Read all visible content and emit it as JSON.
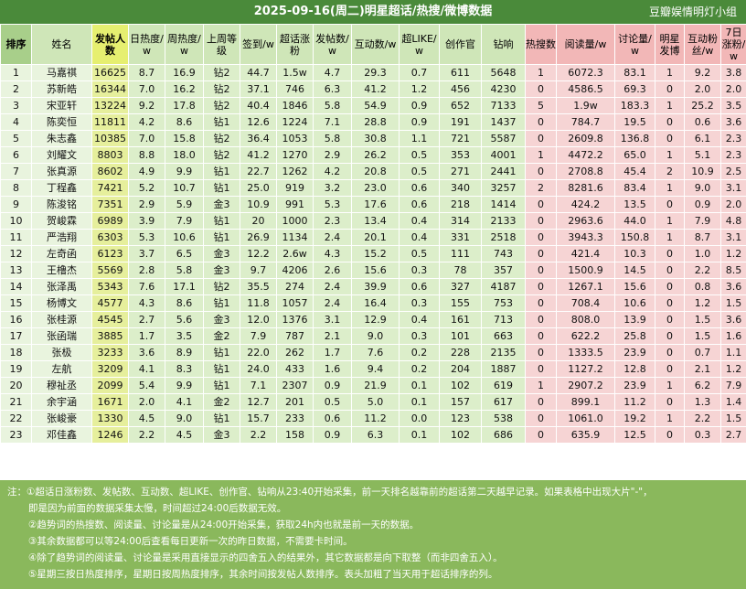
{
  "title": "2025-09-16(周二)明星超话/热搜/微博数据",
  "org": "豆瓣娱情明灯小组",
  "headers": [
    "排序",
    "姓名",
    "发帖人数",
    "日热度/w",
    "周热度/w",
    "上周等级",
    "签到/w",
    "超话涨粉",
    "发帖数/w",
    "互动数/w",
    "超LIKE/w",
    "创作官",
    "钻响",
    "热搜数",
    "阅读量/w",
    "讨论量/w",
    "明星发博",
    "互动粉丝/w",
    "7日涨粉/w"
  ],
  "rows": [
    [
      "1",
      "马嘉祺",
      "16625",
      "8.7",
      "16.9",
      "钻2",
      "44.7",
      "1.5w",
      "4.7",
      "29.3",
      "0.7",
      "611",
      "5648",
      "1",
      "6072.3",
      "83.1",
      "1",
      "9.2",
      "3.8"
    ],
    [
      "2",
      "苏新皓",
      "16344",
      "7.0",
      "16.2",
      "钻2",
      "37.1",
      "746",
      "6.3",
      "41.2",
      "1.2",
      "456",
      "4230",
      "0",
      "4586.5",
      "69.3",
      "0",
      "2.0",
      "2.0"
    ],
    [
      "3",
      "宋亚轩",
      "13224",
      "9.2",
      "17.8",
      "钻2",
      "40.4",
      "1846",
      "5.8",
      "54.9",
      "0.9",
      "652",
      "7133",
      "5",
      "1.9w",
      "183.3",
      "1",
      "25.2",
      "3.5"
    ],
    [
      "4",
      "陈奕恒",
      "11811",
      "4.2",
      "8.6",
      "钻1",
      "12.6",
      "1224",
      "7.1",
      "28.8",
      "0.9",
      "191",
      "1437",
      "0",
      "784.7",
      "19.5",
      "0",
      "0.6",
      "3.6"
    ],
    [
      "5",
      "朱志鑫",
      "10385",
      "7.0",
      "15.8",
      "钻2",
      "36.4",
      "1053",
      "5.8",
      "30.8",
      "1.1",
      "721",
      "5587",
      "0",
      "2609.8",
      "136.8",
      "0",
      "6.1",
      "2.3"
    ],
    [
      "6",
      "刘耀文",
      "8803",
      "8.8",
      "18.0",
      "钻2",
      "41.2",
      "1270",
      "2.9",
      "26.2",
      "0.5",
      "353",
      "4001",
      "1",
      "4472.2",
      "65.0",
      "1",
      "5.1",
      "2.3"
    ],
    [
      "7",
      "张真源",
      "8602",
      "4.9",
      "9.9",
      "钻1",
      "22.7",
      "1262",
      "4.2",
      "20.8",
      "0.5",
      "271",
      "2441",
      "0",
      "2708.8",
      "45.4",
      "2",
      "10.9",
      "2.5"
    ],
    [
      "8",
      "丁程鑫",
      "7421",
      "5.2",
      "10.7",
      "钻1",
      "25.0",
      "919",
      "3.2",
      "23.0",
      "0.6",
      "340",
      "3257",
      "2",
      "8281.6",
      "83.4",
      "1",
      "9.0",
      "3.1"
    ],
    [
      "9",
      "陈浚铭",
      "7351",
      "2.9",
      "5.9",
      "金3",
      "10.9",
      "991",
      "5.3",
      "17.6",
      "0.6",
      "218",
      "1414",
      "0",
      "424.2",
      "13.5",
      "0",
      "0.9",
      "2.0"
    ],
    [
      "10",
      "贺峻霖",
      "6989",
      "3.9",
      "7.9",
      "钻1",
      "20",
      "1000",
      "2.3",
      "13.4",
      "0.4",
      "314",
      "2133",
      "0",
      "2963.6",
      "44.0",
      "1",
      "7.9",
      "4.8"
    ],
    [
      "11",
      "严浩翔",
      "6303",
      "5.3",
      "10.6",
      "钻1",
      "26.9",
      "1134",
      "2.4",
      "20.1",
      "0.4",
      "331",
      "2518",
      "0",
      "3943.3",
      "150.8",
      "1",
      "8.7",
      "3.1"
    ],
    [
      "12",
      "左奇函",
      "6123",
      "3.7",
      "6.5",
      "金3",
      "12.2",
      "2.6w",
      "4.3",
      "15.2",
      "0.5",
      "111",
      "743",
      "0",
      "421.4",
      "10.3",
      "0",
      "1.0",
      "1.2"
    ],
    [
      "13",
      "王橹杰",
      "5569",
      "2.8",
      "5.8",
      "金3",
      "9.7",
      "4206",
      "2.6",
      "15.6",
      "0.3",
      "78",
      "357",
      "0",
      "1500.9",
      "14.5",
      "0",
      "2.2",
      "8.5"
    ],
    [
      "14",
      "张泽禹",
      "5343",
      "7.6",
      "17.1",
      "钻2",
      "35.5",
      "274",
      "2.4",
      "39.9",
      "0.6",
      "327",
      "4187",
      "0",
      "1267.1",
      "15.6",
      "0",
      "0.8",
      "3.6"
    ],
    [
      "15",
      "杨博文",
      "4577",
      "4.3",
      "8.6",
      "钻1",
      "11.8",
      "1057",
      "2.4",
      "16.4",
      "0.3",
      "155",
      "753",
      "0",
      "708.4",
      "10.6",
      "0",
      "1.2",
      "1.5"
    ],
    [
      "16",
      "张桂源",
      "4545",
      "2.7",
      "5.6",
      "金3",
      "12.0",
      "1376",
      "3.1",
      "12.9",
      "0.4",
      "161",
      "713",
      "0",
      "808.0",
      "13.9",
      "0",
      "1.5",
      "3.6"
    ],
    [
      "17",
      "张函瑞",
      "3885",
      "1.7",
      "3.5",
      "金2",
      "7.9",
      "787",
      "2.1",
      "9.0",
      "0.3",
      "101",
      "663",
      "0",
      "622.2",
      "25.8",
      "0",
      "1.5",
      "1.6"
    ],
    [
      "18",
      "张极",
      "3233",
      "3.6",
      "8.9",
      "钻1",
      "22.0",
      "262",
      "1.7",
      "7.6",
      "0.2",
      "228",
      "2135",
      "0",
      "1333.5",
      "23.9",
      "0",
      "0.7",
      "1.1"
    ],
    [
      "19",
      "左航",
      "3209",
      "4.1",
      "8.3",
      "钻1",
      "24.0",
      "433",
      "1.6",
      "9.4",
      "0.2",
      "204",
      "1887",
      "0",
      "1127.2",
      "12.8",
      "0",
      "2.1",
      "1.2"
    ],
    [
      "20",
      "穆祉丞",
      "2099",
      "5.4",
      "9.9",
      "钻1",
      "7.1",
      "2307",
      "0.9",
      "21.9",
      "0.1",
      "102",
      "619",
      "1",
      "2907.2",
      "23.9",
      "1",
      "6.2",
      "7.9"
    ],
    [
      "21",
      "余宇涵",
      "1671",
      "2.0",
      "4.1",
      "金2",
      "12.7",
      "201",
      "0.5",
      "5.0",
      "0.1",
      "157",
      "617",
      "0",
      "899.1",
      "11.2",
      "0",
      "1.3",
      "1.4"
    ],
    [
      "22",
      "张峻豪",
      "1330",
      "4.5",
      "9.0",
      "钻1",
      "15.7",
      "233",
      "0.6",
      "11.2",
      "0.0",
      "123",
      "538",
      "0",
      "1061.0",
      "19.2",
      "1",
      "2.2",
      "1.5"
    ],
    [
      "23",
      "邓佳鑫",
      "1246",
      "2.2",
      "4.5",
      "金3",
      "2.2",
      "158",
      "0.9",
      "6.3",
      "0.1",
      "102",
      "686",
      "0",
      "635.9",
      "12.5",
      "0",
      "0.3",
      "2.7"
    ]
  ],
  "highlights": {
    "red": [
      [
        0,
        6
      ],
      [
        0,
        7
      ],
      [
        1,
        14
      ],
      [
        2,
        14
      ],
      [
        5,
        2
      ],
      [
        11,
        3
      ],
      [
        11,
        6
      ],
      [
        11,
        7
      ],
      [
        12,
        7
      ],
      [
        19,
        18
      ],
      [
        20,
        2
      ],
      [
        10,
        15
      ]
    ],
    "blue": [
      [
        1,
        3
      ],
      [
        2,
        6
      ],
      [
        7,
        6
      ],
      [
        12,
        14
      ],
      [
        13,
        15
      ],
      [
        17,
        3
      ],
      [
        18,
        6
      ],
      [
        21,
        2
      ],
      [
        22,
        2
      ]
    ],
    "purple": [
      [
        7,
        15
      ],
      [
        9,
        15
      ],
      [
        12,
        18
      ]
    ]
  },
  "notes": [
    "注：①超话日涨粉数、发帖数、互动数、超LIKE、创作官、钻响从23:40开始采集，前一天排名越靠前的超话第二天越早记录。如果表格中出现大片\"-\"，",
    "即是因为前面的数据采集太慢，时间超过24:00后数据无效。",
    "②趋势词的热搜数、阅读量、讨论量是从24:00开始采集，获取24h内也就是前一天的数据。",
    "③其余数据都可以等24:00后查看每日更新一次的昨日数据，不需要卡时间。",
    "④除了趋势词的阅读量、讨论量是采用直接显示的四舍五入的结果外，其它数据都是向下取整（而非四舍五入）。",
    "⑤星期三按日热度排序，星期日按周热度排序，其余时间按发帖人数排序。表头加粗了当天用于超话排序的列。"
  ],
  "colors": {
    "title_bg": "#4a8a3a",
    "notes_bg": "#8ab85c",
    "header_yellow": "#e6ef70",
    "header_pink": "#f2b7b7",
    "red_text": "#c0392b",
    "blue_text": "#2f5e9e"
  }
}
